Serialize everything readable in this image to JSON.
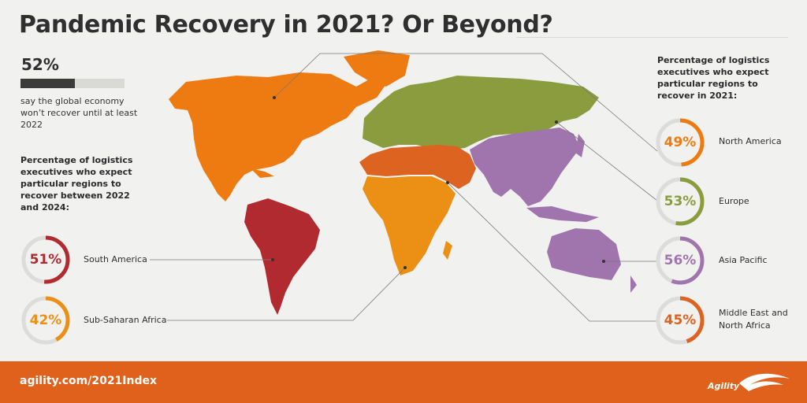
{
  "title": "Pandemic Recovery in 2021? Or Beyond?",
  "global": {
    "value_label": "52%",
    "fraction": 0.52,
    "caption": "say the global economy won’t recover until at least 2022"
  },
  "left_section": {
    "heading": "Percentage of logistics executives who expect particular regions to recover between 2022 and 2024:",
    "items": [
      {
        "pct_label": "51%",
        "fraction": 0.51,
        "region": "South America",
        "color": "#b02a30"
      },
      {
        "pct_label": "42%",
        "fraction": 0.42,
        "region": "Sub-Saharan Africa",
        "color": "#ec8f15"
      }
    ]
  },
  "right_section": {
    "heading": "Percentage of logistics executives who expect particular regions to recover in 2021:",
    "items": [
      {
        "pct_label": "49%",
        "fraction": 0.49,
        "region": "North America",
        "color": "#ee7b12"
      },
      {
        "pct_label": "53%",
        "fraction": 0.53,
        "region": "Europe",
        "color": "#8a9c3e"
      },
      {
        "pct_label": "56%",
        "fraction": 0.56,
        "region": "Asia Pacific",
        "color": "#a075ad"
      },
      {
        "pct_label": "45%",
        "fraction": 0.45,
        "region": "Middle East and North Africa",
        "color": "#dc6320"
      }
    ]
  },
  "footer": {
    "url": "agility.com/2021Index",
    "logo_text": "Agility",
    "color": "#e0611b"
  },
  "map_colors": {
    "north_america": "#ee7b12",
    "south_america": "#b02a30",
    "europe_russia": "#8a9c3e",
    "asia_pacific": "#a075ad",
    "mena": "#dc6320",
    "africa": "#ec8f15"
  }
}
